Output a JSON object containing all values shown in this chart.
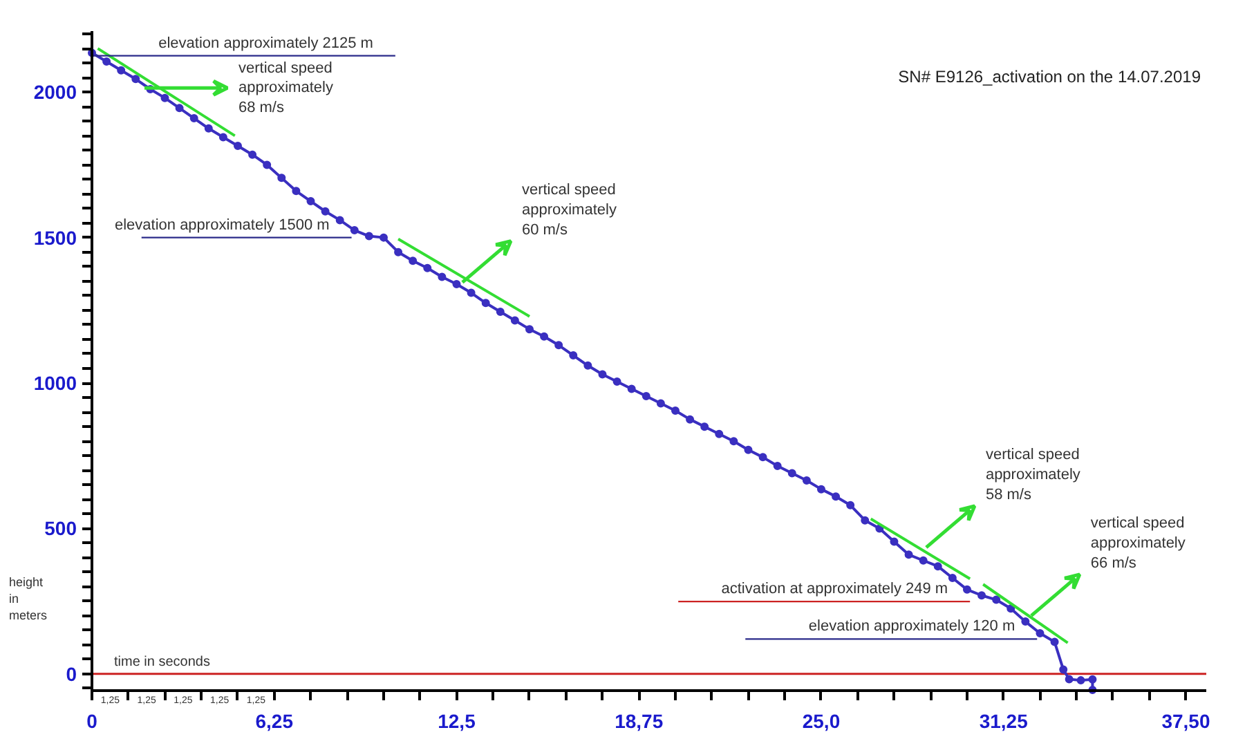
{
  "chart_data": {
    "type": "line",
    "title": "SN# E9126_activation on the 14.07.2019",
    "xlabel": "time in seconds",
    "ylabel": "height in meters",
    "xlim": [
      0,
      38.2
    ],
    "ylim": [
      -58,
      2210
    ],
    "xticks": [
      {
        "value": 0,
        "label": "0"
      },
      {
        "value": 1.25,
        "label": null
      },
      {
        "value": 2.5,
        "label": null
      },
      {
        "value": 3.75,
        "label": null
      },
      {
        "value": 5,
        "label": null
      },
      {
        "value": 6.25,
        "label": "6,25"
      },
      {
        "value": 7.5,
        "label": null
      },
      {
        "value": 8.75,
        "label": null
      },
      {
        "value": 10,
        "label": null
      },
      {
        "value": 11.25,
        "label": null
      },
      {
        "value": 12.5,
        "label": "12,5"
      },
      {
        "value": 13.75,
        "label": null
      },
      {
        "value": 15,
        "label": null
      },
      {
        "value": 16.25,
        "label": null
      },
      {
        "value": 17.5,
        "label": null
      },
      {
        "value": 18.75,
        "label": "18,75"
      },
      {
        "value": 20,
        "label": null
      },
      {
        "value": 21.25,
        "label": null
      },
      {
        "value": 22.5,
        "label": null
      },
      {
        "value": 23.75,
        "label": null
      },
      {
        "value": 25,
        "label": "25,0"
      },
      {
        "value": 26.25,
        "label": null
      },
      {
        "value": 27.5,
        "label": null
      },
      {
        "value": 28.75,
        "label": null
      },
      {
        "value": 30,
        "label": null
      },
      {
        "value": 31.25,
        "label": "31,25"
      },
      {
        "value": 32.5,
        "label": null
      },
      {
        "value": 33.75,
        "label": null
      },
      {
        "value": 35,
        "label": null
      },
      {
        "value": 36.25,
        "label": null
      },
      {
        "value": 37.5,
        "label": "37,50"
      }
    ],
    "yticks": [
      {
        "value": -50,
        "label": null
      },
      0,
      {
        "value": 50,
        "label": null
      },
      {
        "value": 100,
        "label": null
      },
      {
        "value": 150,
        "label": null
      },
      {
        "value": 200,
        "label": null
      },
      {
        "value": 250,
        "label": null
      },
      {
        "value": 300,
        "label": null
      },
      {
        "value": 350,
        "label": null
      },
      {
        "value": 400,
        "label": null
      },
      {
        "value": 450,
        "label": null
      },
      500,
      {
        "value": 550,
        "label": null
      },
      {
        "value": 600,
        "label": null
      },
      {
        "value": 650,
        "label": null
      },
      {
        "value": 700,
        "label": null
      },
      {
        "value": 750,
        "label": null
      },
      {
        "value": 800,
        "label": null
      },
      {
        "value": 850,
        "label": null
      },
      {
        "value": 900,
        "label": null
      },
      {
        "value": 950,
        "label": null
      },
      1000,
      {
        "value": 1050,
        "label": null
      },
      {
        "value": 1100,
        "label": null
      },
      {
        "value": 1150,
        "label": null
      },
      {
        "value": 1200,
        "label": null
      },
      {
        "value": 1250,
        "label": null
      },
      {
        "value": 1300,
        "label": null
      },
      {
        "value": 1350,
        "label": null
      },
      {
        "value": 1400,
        "label": null
      },
      {
        "value": 1450,
        "label": null
      },
      1500,
      {
        "value": 1550,
        "label": null
      },
      {
        "value": 1600,
        "label": null
      },
      {
        "value": 1650,
        "label": null
      },
      {
        "value": 1700,
        "label": null
      },
      {
        "value": 1750,
        "label": null
      },
      {
        "value": 1800,
        "label": null
      },
      {
        "value": 1850,
        "label": null
      },
      {
        "value": 1900,
        "label": null
      },
      {
        "value": 1950,
        "label": null
      },
      2000,
      {
        "value": 2050,
        "label": null
      },
      {
        "value": 2100,
        "label": null
      },
      {
        "value": 2150,
        "label": null
      },
      {
        "value": 2200,
        "label": null
      }
    ],
    "grid": false,
    "ref_lines": [
      {
        "axis": "y",
        "value": 0,
        "color": "#cc2222"
      }
    ],
    "series": [
      {
        "color": "#3a2fc0",
        "marker": "circle",
        "x": [
          0,
          0.5,
          1,
          1.5,
          2,
          2.5,
          3,
          3.5,
          4,
          4.5,
          5,
          5.5,
          6,
          6.5,
          7,
          7.5,
          8,
          8.5,
          9,
          9.5,
          10,
          10.5,
          11,
          11.5,
          12,
          12.5,
          13,
          13.5,
          14,
          14.5,
          15,
          15.5,
          16,
          16.5,
          17,
          17.5,
          18,
          18.5,
          19,
          19.5,
          20,
          20.5,
          21,
          21.5,
          22,
          22.5,
          23,
          23.5,
          24,
          24.5,
          25,
          25.5,
          26,
          26.5,
          27,
          27.5,
          28,
          28.5,
          29,
          29.5,
          30,
          30.5,
          31,
          31.5,
          32,
          32.5,
          33,
          33.3,
          33.5,
          33.9,
          34.3,
          34.3
        ],
        "values": [
          2135,
          2105,
          2075,
          2045,
          2010,
          1980,
          1945,
          1910,
          1875,
          1845,
          1815,
          1785,
          1750,
          1705,
          1660,
          1625,
          1590,
          1560,
          1525,
          1505,
          1500,
          1450,
          1420,
          1395,
          1365,
          1340,
          1310,
          1275,
          1245,
          1215,
          1185,
          1160,
          1130,
          1095,
          1060,
          1030,
          1005,
          980,
          955,
          930,
          905,
          875,
          850,
          825,
          800,
          770,
          745,
          715,
          690,
          665,
          635,
          610,
          580,
          528,
          500,
          455,
          410,
          390,
          370,
          330,
          290,
          270,
          255,
          225,
          180,
          140,
          110,
          15,
          -18,
          -22,
          -19,
          -55
        ]
      },
      {
        "type": "line",
        "color": "#33dd33",
        "x": [
          0.2,
          4.9
        ],
        "values": [
          2150,
          1850
        ]
      },
      {
        "type": "line",
        "color": "#33dd33",
        "x": [
          10.5,
          15.0
        ],
        "values": [
          1495,
          1229
        ]
      },
      {
        "type": "line",
        "color": "#33dd33",
        "x": [
          26.7,
          30.1
        ],
        "values": [
          533,
          327
        ]
      },
      {
        "type": "line",
        "color": "#33dd33",
        "x": [
          30.55,
          33.45
        ],
        "values": [
          308,
          107
        ]
      },
      {
        "type": "line",
        "name": "elevation approximately 2125 m",
        "color": "#2a2a8a",
        "x": [
          0,
          10.4
        ],
        "values": [
          2125,
          2125
        ]
      },
      {
        "type": "line",
        "name": "elevation approximately 1500 m",
        "color": "#2a2a8a",
        "x": [
          1.7,
          8.9
        ],
        "values": [
          1500,
          1500
        ]
      },
      {
        "type": "line",
        "name": "activation at approximately 249 m",
        "color": "#cc2222",
        "x": [
          20.1,
          30.1
        ],
        "values": [
          249,
          249
        ]
      },
      {
        "type": "line",
        "name": "elevation approximately 120 m",
        "color": "#2a2a8a",
        "x": [
          22.4,
          32.4
        ],
        "values": [
          120,
          120
        ]
      }
    ],
    "annotations": [
      {
        "text": "vertical speed\napproximately\n68 m/s",
        "x": 1.8,
        "y": 2014
      },
      {
        "text": "vertical speed\napproximately\n60 m/s",
        "x": 12.7,
        "y": 1346
      },
      {
        "text": "vertical speed\napproximately\n58 m/s",
        "x": 28.6,
        "y": 435
      },
      {
        "text": "vertical speed\napproximately\n66 m/s",
        "x": 32.2,
        "y": 200
      },
      "1,25",
      "1,25",
      "1,25",
      "1,25",
      "1,25"
    ]
  }
}
